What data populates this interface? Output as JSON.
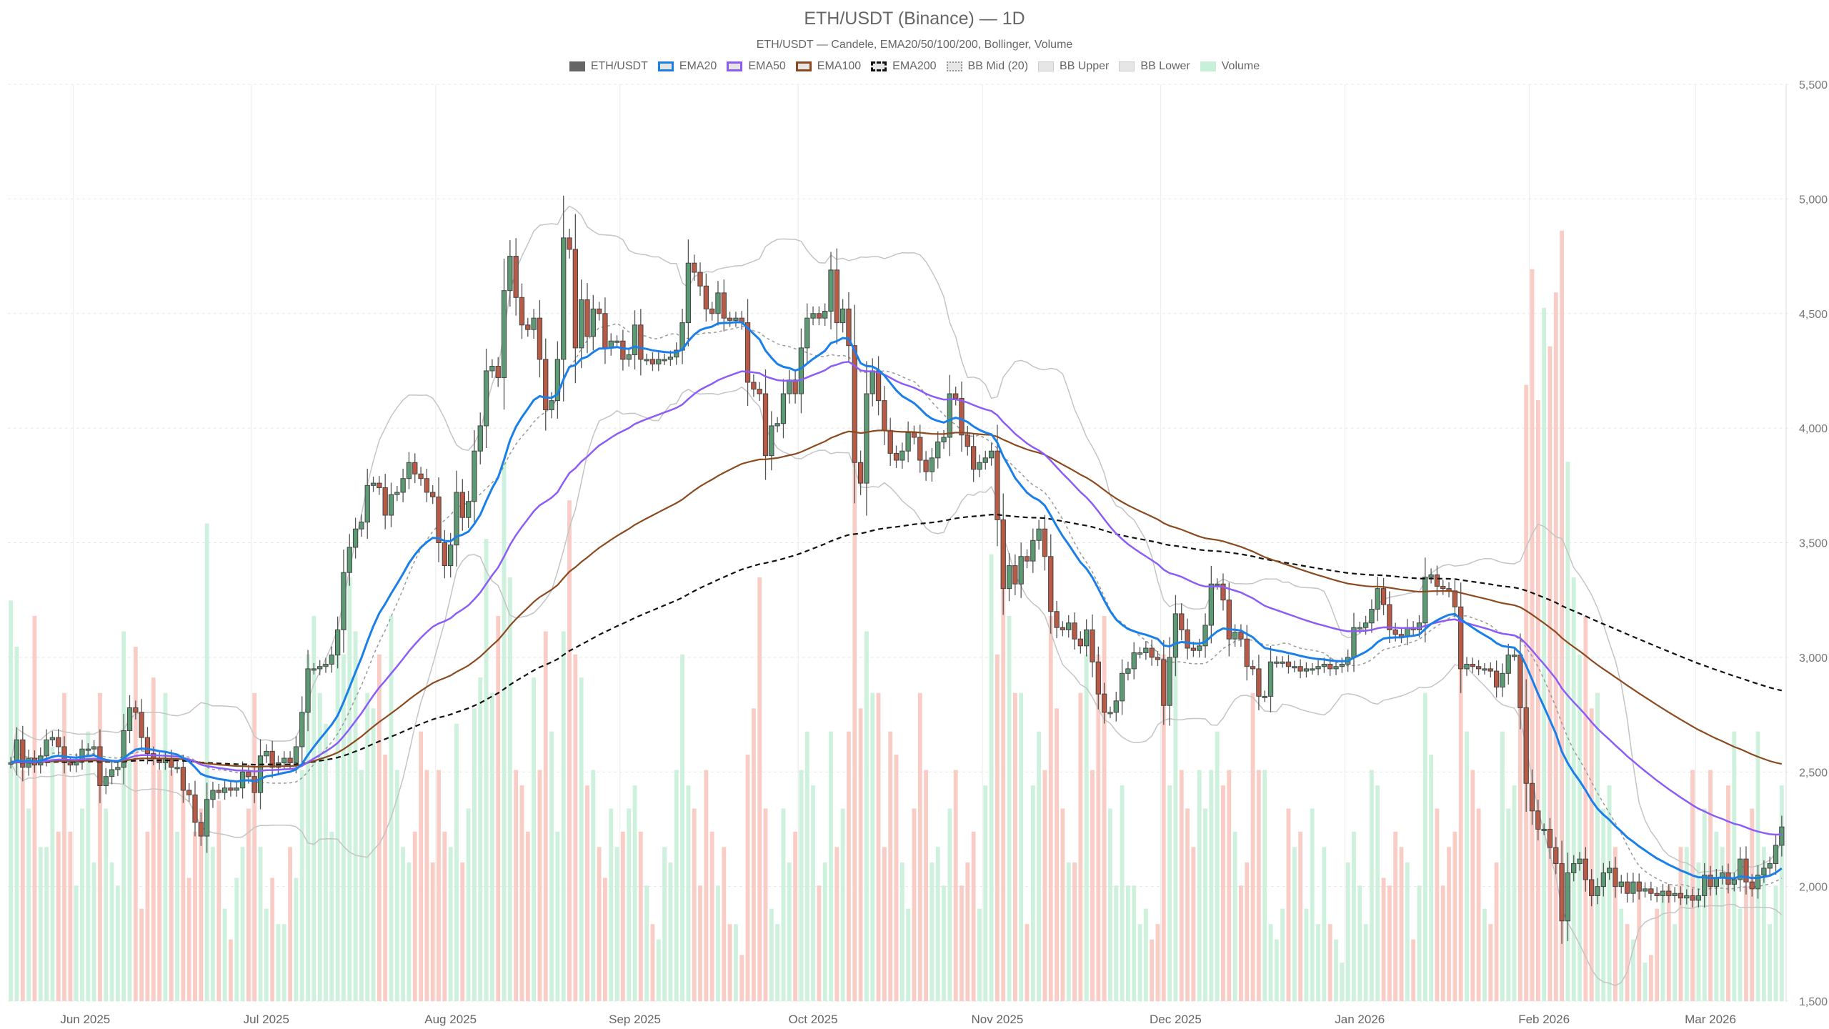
{
  "chart_data": {
    "type": "candlestick",
    "title": "ETH/USDT (Binance) — 1D",
    "subtitle": "ETH/USDT — Candele, EMA20/50/100/200, Bollinger, Volume",
    "legend": [
      {
        "label": "ETH/USDT",
        "color": "#666666",
        "style": "solid-fill"
      },
      {
        "label": "EMA20",
        "color": "#1a7fe8",
        "style": "line"
      },
      {
        "label": "EMA50",
        "color": "#8b5cf6",
        "style": "line"
      },
      {
        "label": "EMA100",
        "color": "#8b4a1f",
        "style": "line"
      },
      {
        "label": "EMA200",
        "color": "#111111",
        "style": "dashed"
      },
      {
        "label": "BB Mid (20)",
        "color": "#999999",
        "style": "dotted"
      },
      {
        "label": "BB Upper",
        "color": "#bbbbbb",
        "style": "line"
      },
      {
        "label": "BB Lower",
        "color": "#bbbbbb",
        "style": "line"
      },
      {
        "label": "Volume",
        "color": "#c8efd8",
        "style": "fill"
      }
    ],
    "legend_position": "top",
    "date_range": [
      "2025-05-21",
      "2026-03-15"
    ],
    "x_tick_labels": [
      "Jun 2025",
      "Jul 2025",
      "Aug 2025",
      "Sep 2025",
      "Oct 2025",
      "Nov 2025",
      "Dec 2025",
      "Jan 2026",
      "Feb 2026",
      "Mar 2026"
    ],
    "y_axis": {
      "position": "right",
      "range": [
        1500,
        5500
      ],
      "ticks": [
        "1,500",
        "2,000",
        "2,500",
        "3,000",
        "3,500",
        "4,000",
        "4,500",
        "5,000",
        "5,500"
      ]
    },
    "grid": true,
    "colors": {
      "up": "#5c9a74",
      "down": "#b85a45",
      "vol_up": "#c8efd8",
      "vol_down": "#f8c8c0"
    },
    "close": [
      2540,
      2640,
      2520,
      2560,
      2530,
      2570,
      2640,
      2650,
      2610,
      2540,
      2530,
      2550,
      2600,
      2600,
      2610,
      2440,
      2480,
      2510,
      2520,
      2680,
      2780,
      2760,
      2650,
      2580,
      2560,
      2540,
      2560,
      2520,
      2520,
      2420,
      2400,
      2280,
      2220,
      2380,
      2420,
      2410,
      2430,
      2420,
      2430,
      2500,
      2480,
      2410,
      2570,
      2590,
      2520,
      2540,
      2560,
      2540,
      2610,
      2760,
      2950,
      2950,
      2960,
      2970,
      3010,
      3120,
      3370,
      3480,
      3560,
      3590,
      3750,
      3760,
      3740,
      3620,
      3710,
      3720,
      3780,
      3850,
      3800,
      3780,
      3720,
      3700,
      3500,
      3400,
      3490,
      3720,
      3610,
      3680,
      3900,
      4010,
      4250,
      4270,
      4220,
      4600,
      4750,
      4570,
      4450,
      4430,
      4480,
      4300,
      4080,
      4120,
      4300,
      4830,
      4780,
      4350,
      4560,
      4400,
      4520,
      4500,
      4350,
      4380,
      4380,
      4300,
      4320,
      4450,
      4300,
      4300,
      4280,
      4300,
      4300,
      4310,
      4340,
      4460,
      4720,
      4680,
      4620,
      4520,
      4500,
      4590,
      4480,
      4470,
      4480,
      4460,
      4200,
      4170,
      4150,
      3880,
      4010,
      4020,
      4150,
      4210,
      4150,
      4350,
      4480,
      4500,
      4480,
      4510,
      4690,
      4460,
      4520,
      4360,
      3850,
      3760,
      4150,
      4250,
      4120,
      3990,
      3890,
      3860,
      3900,
      3980,
      3960,
      3860,
      3810,
      3870,
      3940,
      3960,
      4150,
      4130,
      3970,
      3920,
      3820,
      3850,
      3870,
      3900,
      3600,
      3300,
      3400,
      3320,
      3440,
      3420,
      3510,
      3560,
      3440,
      3200,
      3130,
      3120,
      3150,
      3080,
      3050,
      3120,
      2980,
      2840,
      2760,
      2760,
      2810,
      2930,
      2950,
      3020,
      3020,
      3040,
      3000,
      2990,
      2790,
      3000,
      3190,
      3120,
      3040,
      3030,
      3050,
      3140,
      3320,
      3320,
      3250,
      3080,
      3110,
      3080,
      2960,
      2950,
      2830,
      2830,
      2980,
      2980,
      2980,
      2960,
      2960,
      2940,
      2950,
      2950,
      2960,
      2970,
      2950,
      2960,
      2970,
      3000,
      3130,
      3130,
      3150,
      3210,
      3300,
      3230,
      3120,
      3100,
      3090,
      3130,
      3120,
      3150,
      3350,
      3360,
      3310,
      3300,
      3290,
      3220,
      2950,
      2970,
      2960,
      2950,
      2950,
      2940,
      2870,
      2930,
      3010,
      3010,
      2780,
      2450,
      2330,
      2250,
      2250,
      2170,
      2100,
      1850,
      2060,
      2100,
      2120,
      2030,
      1960,
      2000,
      2060,
      2080,
      2000,
      2020,
      1970,
      2020,
      1980,
      1990,
      1970,
      1960,
      1980,
      1960,
      1970,
      1950,
      1960,
      1940,
      1960,
      2050,
      2000,
      2040,
      2060,
      2010,
      2030,
      2120,
      2020,
      1990,
      2050,
      2080,
      2100,
      2180,
      2260
    ],
    "volume_relative": [
      52,
      46,
      30,
      25,
      50,
      20,
      20,
      33,
      22,
      40,
      22,
      15,
      25,
      35,
      18,
      40,
      25,
      18,
      15,
      48,
      32,
      46,
      12,
      22,
      42,
      30,
      40,
      30,
      22,
      30,
      16,
      22,
      25,
      62,
      20,
      26,
      12,
      8,
      16,
      20,
      25,
      40,
      20,
      12,
      16,
      10,
      10,
      20,
      16,
      30,
      45,
      50,
      40,
      36,
      22,
      45,
      45,
      55,
      48,
      30,
      40,
      38,
      45,
      32,
      50,
      30,
      20,
      18,
      22,
      35,
      30,
      18,
      30,
      22,
      20,
      36,
      18,
      25,
      38,
      42,
      60,
      40,
      50,
      70,
      55,
      30,
      28,
      22,
      42,
      30,
      48,
      35,
      22,
      48,
      65,
      45,
      42,
      28,
      30,
      20,
      16,
      25,
      20,
      22,
      25,
      28,
      22,
      15,
      10,
      8,
      20,
      18,
      30,
      45,
      28,
      25,
      15,
      30,
      22,
      15,
      20,
      10,
      10,
      6,
      32,
      38,
      55,
      25,
      12,
      10,
      25,
      18,
      22,
      30,
      35,
      28,
      15,
      18,
      35,
      20,
      25,
      35,
      75,
      38,
      48,
      40,
      40,
      20,
      35,
      32,
      18,
      12,
      25,
      40,
      30,
      18,
      20,
      15,
      25,
      30,
      15,
      18,
      22,
      12,
      28,
      58,
      45,
      62,
      50,
      40,
      40,
      10,
      28,
      35,
      30,
      50,
      38,
      25,
      18,
      18,
      40,
      45,
      30,
      45,
      50,
      25,
      15,
      28,
      15,
      15,
      10,
      12,
      8,
      10,
      45,
      28,
      45,
      30,
      25,
      20,
      30,
      25,
      30,
      35,
      28,
      30,
      22,
      15,
      18,
      40,
      30,
      30,
      10,
      8,
      12,
      25,
      20,
      22,
      12,
      25,
      10,
      20,
      10,
      8,
      5,
      18,
      22,
      15,
      10,
      30,
      28,
      16,
      15,
      22,
      20,
      18,
      8,
      15,
      40,
      32,
      25,
      15,
      20,
      22,
      50,
      35,
      30,
      25,
      12,
      10,
      18,
      35,
      25,
      28,
      45,
      80,
      95,
      78,
      90,
      85,
      92,
      100,
      70,
      55,
      45,
      50,
      38,
      40,
      25,
      28,
      20,
      12,
      10,
      8,
      15,
      5,
      6,
      12,
      14,
      15,
      10,
      20,
      20,
      30,
      18,
      25,
      30,
      22,
      20,
      28,
      35,
      12,
      15,
      25,
      35,
      20,
      10,
      15,
      28
    ]
  }
}
